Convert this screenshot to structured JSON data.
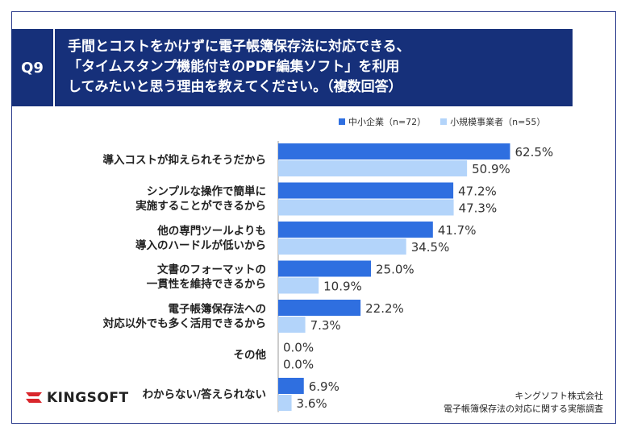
{
  "question": {
    "tag": "Q9",
    "lines": [
      "手間とコストをかけずに電子帳簿保存法に対応できる、",
      "「タイムスタンプ機能付きのPDF編集ソフト」を利用",
      "してみたいと思う理由を教えてください。（複数回答）"
    ]
  },
  "colors": {
    "series1": "#2f6fe0",
    "series2": "#b3d4fa",
    "frame": "#2a3a8c",
    "header": "#16307a",
    "logo_red": "#d9262c"
  },
  "chart_data": {
    "type": "bar",
    "orientation": "horizontal",
    "categories": [
      [
        "導入コストが抑えられそうだから"
      ],
      [
        "シンプルな操作で簡単に",
        "実施することができるから"
      ],
      [
        "他の専門ツールよりも",
        "導入のハードルが低いから"
      ],
      [
        "文書のフォーマットの",
        "一貫性を維持できるから"
      ],
      [
        "電子帳簿保存法への",
        "対応以外でも多く活用できるから"
      ],
      [
        "その他"
      ],
      [
        "わからない/答えられない"
      ]
    ],
    "series": [
      {
        "name": "中小企業（n=72）",
        "values": [
          62.5,
          47.2,
          41.7,
          25.0,
          22.2,
          0.0,
          6.9
        ],
        "labels": [
          "62.5%",
          "47.2%",
          "41.7%",
          "25.0%",
          "22.2%",
          "0.0%",
          "6.9%"
        ]
      },
      {
        "name": "小規模事業者（n=55）",
        "values": [
          50.9,
          47.3,
          34.5,
          10.9,
          7.3,
          0.0,
          3.6
        ],
        "labels": [
          "50.9%",
          "47.3%",
          "34.5%",
          "10.9%",
          "7.3%",
          "0.0%",
          "3.6%"
        ]
      }
    ],
    "xlim": [
      0,
      100
    ],
    "legend_position": "top-right",
    "grid": false
  },
  "footer": {
    "logo_text": "KINGSOFT",
    "source_lines": [
      "キングソフト株式会社",
      "電子帳簿保存法の対応に関する実態調査"
    ]
  }
}
